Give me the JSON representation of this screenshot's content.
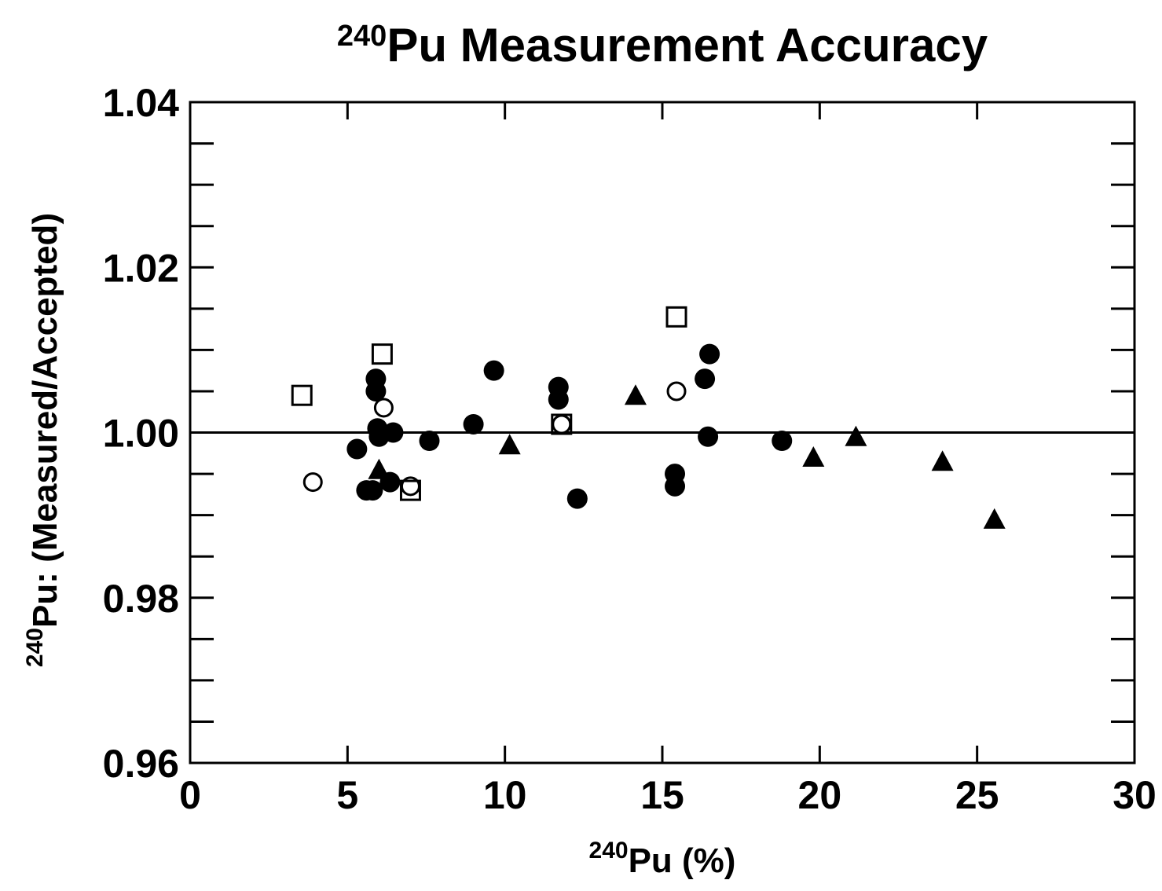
{
  "chart_data": {
    "type": "scatter",
    "title": {
      "superscript": "240",
      "main": "Pu Measurement Accuracy"
    },
    "xlabel": {
      "superscript": "240",
      "main": "Pu (%)"
    },
    "ylabel": {
      "superscript": "240",
      "main": "Pu:  (Measured/Accepted)"
    },
    "xlim": [
      0,
      30
    ],
    "ylim": [
      0.96,
      1.04
    ],
    "x_ticks": [
      0,
      5,
      10,
      15,
      20,
      25,
      30
    ],
    "x_tick_labels": [
      "0",
      "5",
      "10",
      "15",
      "20",
      "25",
      "30"
    ],
    "y_ticks": [
      0.96,
      0.98,
      1.0,
      1.02,
      1.04
    ],
    "y_tick_labels": [
      "0.96",
      "0.98",
      "1.00",
      "1.02",
      "1.04"
    ],
    "y_minor_ticks": [
      0.965,
      0.97,
      0.975,
      0.985,
      0.99,
      0.995,
      1.005,
      1.01,
      1.015,
      1.025,
      1.03,
      1.035
    ],
    "x_minor_ticks": [],
    "reference_line": {
      "y": 1.0
    },
    "grid": false,
    "legend": "none",
    "series": [
      {
        "marker": "filled-circle",
        "points": [
          {
            "x": 5.3,
            "y": 0.998
          },
          {
            "x": 5.6,
            "y": 0.993
          },
          {
            "x": 5.8,
            "y": 0.993
          },
          {
            "x": 5.9,
            "y": 1.0065
          },
          {
            "x": 5.9,
            "y": 1.005
          },
          {
            "x": 5.95,
            "y": 1.0005
          },
          {
            "x": 6.0,
            "y": 0.9995
          },
          {
            "x": 6.35,
            "y": 0.994
          },
          {
            "x": 6.45,
            "y": 1.0
          },
          {
            "x": 7.6,
            "y": 0.999
          },
          {
            "x": 9.0,
            "y": 1.001
          },
          {
            "x": 9.65,
            "y": 1.0075
          },
          {
            "x": 11.7,
            "y": 1.0055
          },
          {
            "x": 11.7,
            "y": 1.004
          },
          {
            "x": 12.3,
            "y": 0.992
          },
          {
            "x": 15.4,
            "y": 0.995
          },
          {
            "x": 15.4,
            "y": 0.9935
          },
          {
            "x": 16.35,
            "y": 1.0065
          },
          {
            "x": 16.45,
            "y": 0.9995
          },
          {
            "x": 16.5,
            "y": 1.0095
          },
          {
            "x": 18.8,
            "y": 0.999
          }
        ]
      },
      {
        "marker": "open-circle",
        "points": [
          {
            "x": 3.9,
            "y": 0.994
          },
          {
            "x": 6.15,
            "y": 1.003
          },
          {
            "x": 7.0,
            "y": 0.9935
          },
          {
            "x": 11.8,
            "y": 1.001
          },
          {
            "x": 15.45,
            "y": 1.005
          }
        ]
      },
      {
        "marker": "open-square",
        "points": [
          {
            "x": 3.55,
            "y": 1.0045
          },
          {
            "x": 6.1,
            "y": 1.0095
          },
          {
            "x": 7.0,
            "y": 0.993
          },
          {
            "x": 11.8,
            "y": 1.001
          },
          {
            "x": 15.45,
            "y": 1.014
          }
        ]
      },
      {
        "marker": "filled-triangle",
        "points": [
          {
            "x": 6.0,
            "y": 0.9955
          },
          {
            "x": 10.15,
            "y": 0.9985
          },
          {
            "x": 14.15,
            "y": 1.0045
          },
          {
            "x": 19.8,
            "y": 0.997
          },
          {
            "x": 21.15,
            "y": 0.9995
          },
          {
            "x": 23.9,
            "y": 0.9965
          },
          {
            "x": 25.55,
            "y": 0.9895
          }
        ]
      }
    ]
  }
}
